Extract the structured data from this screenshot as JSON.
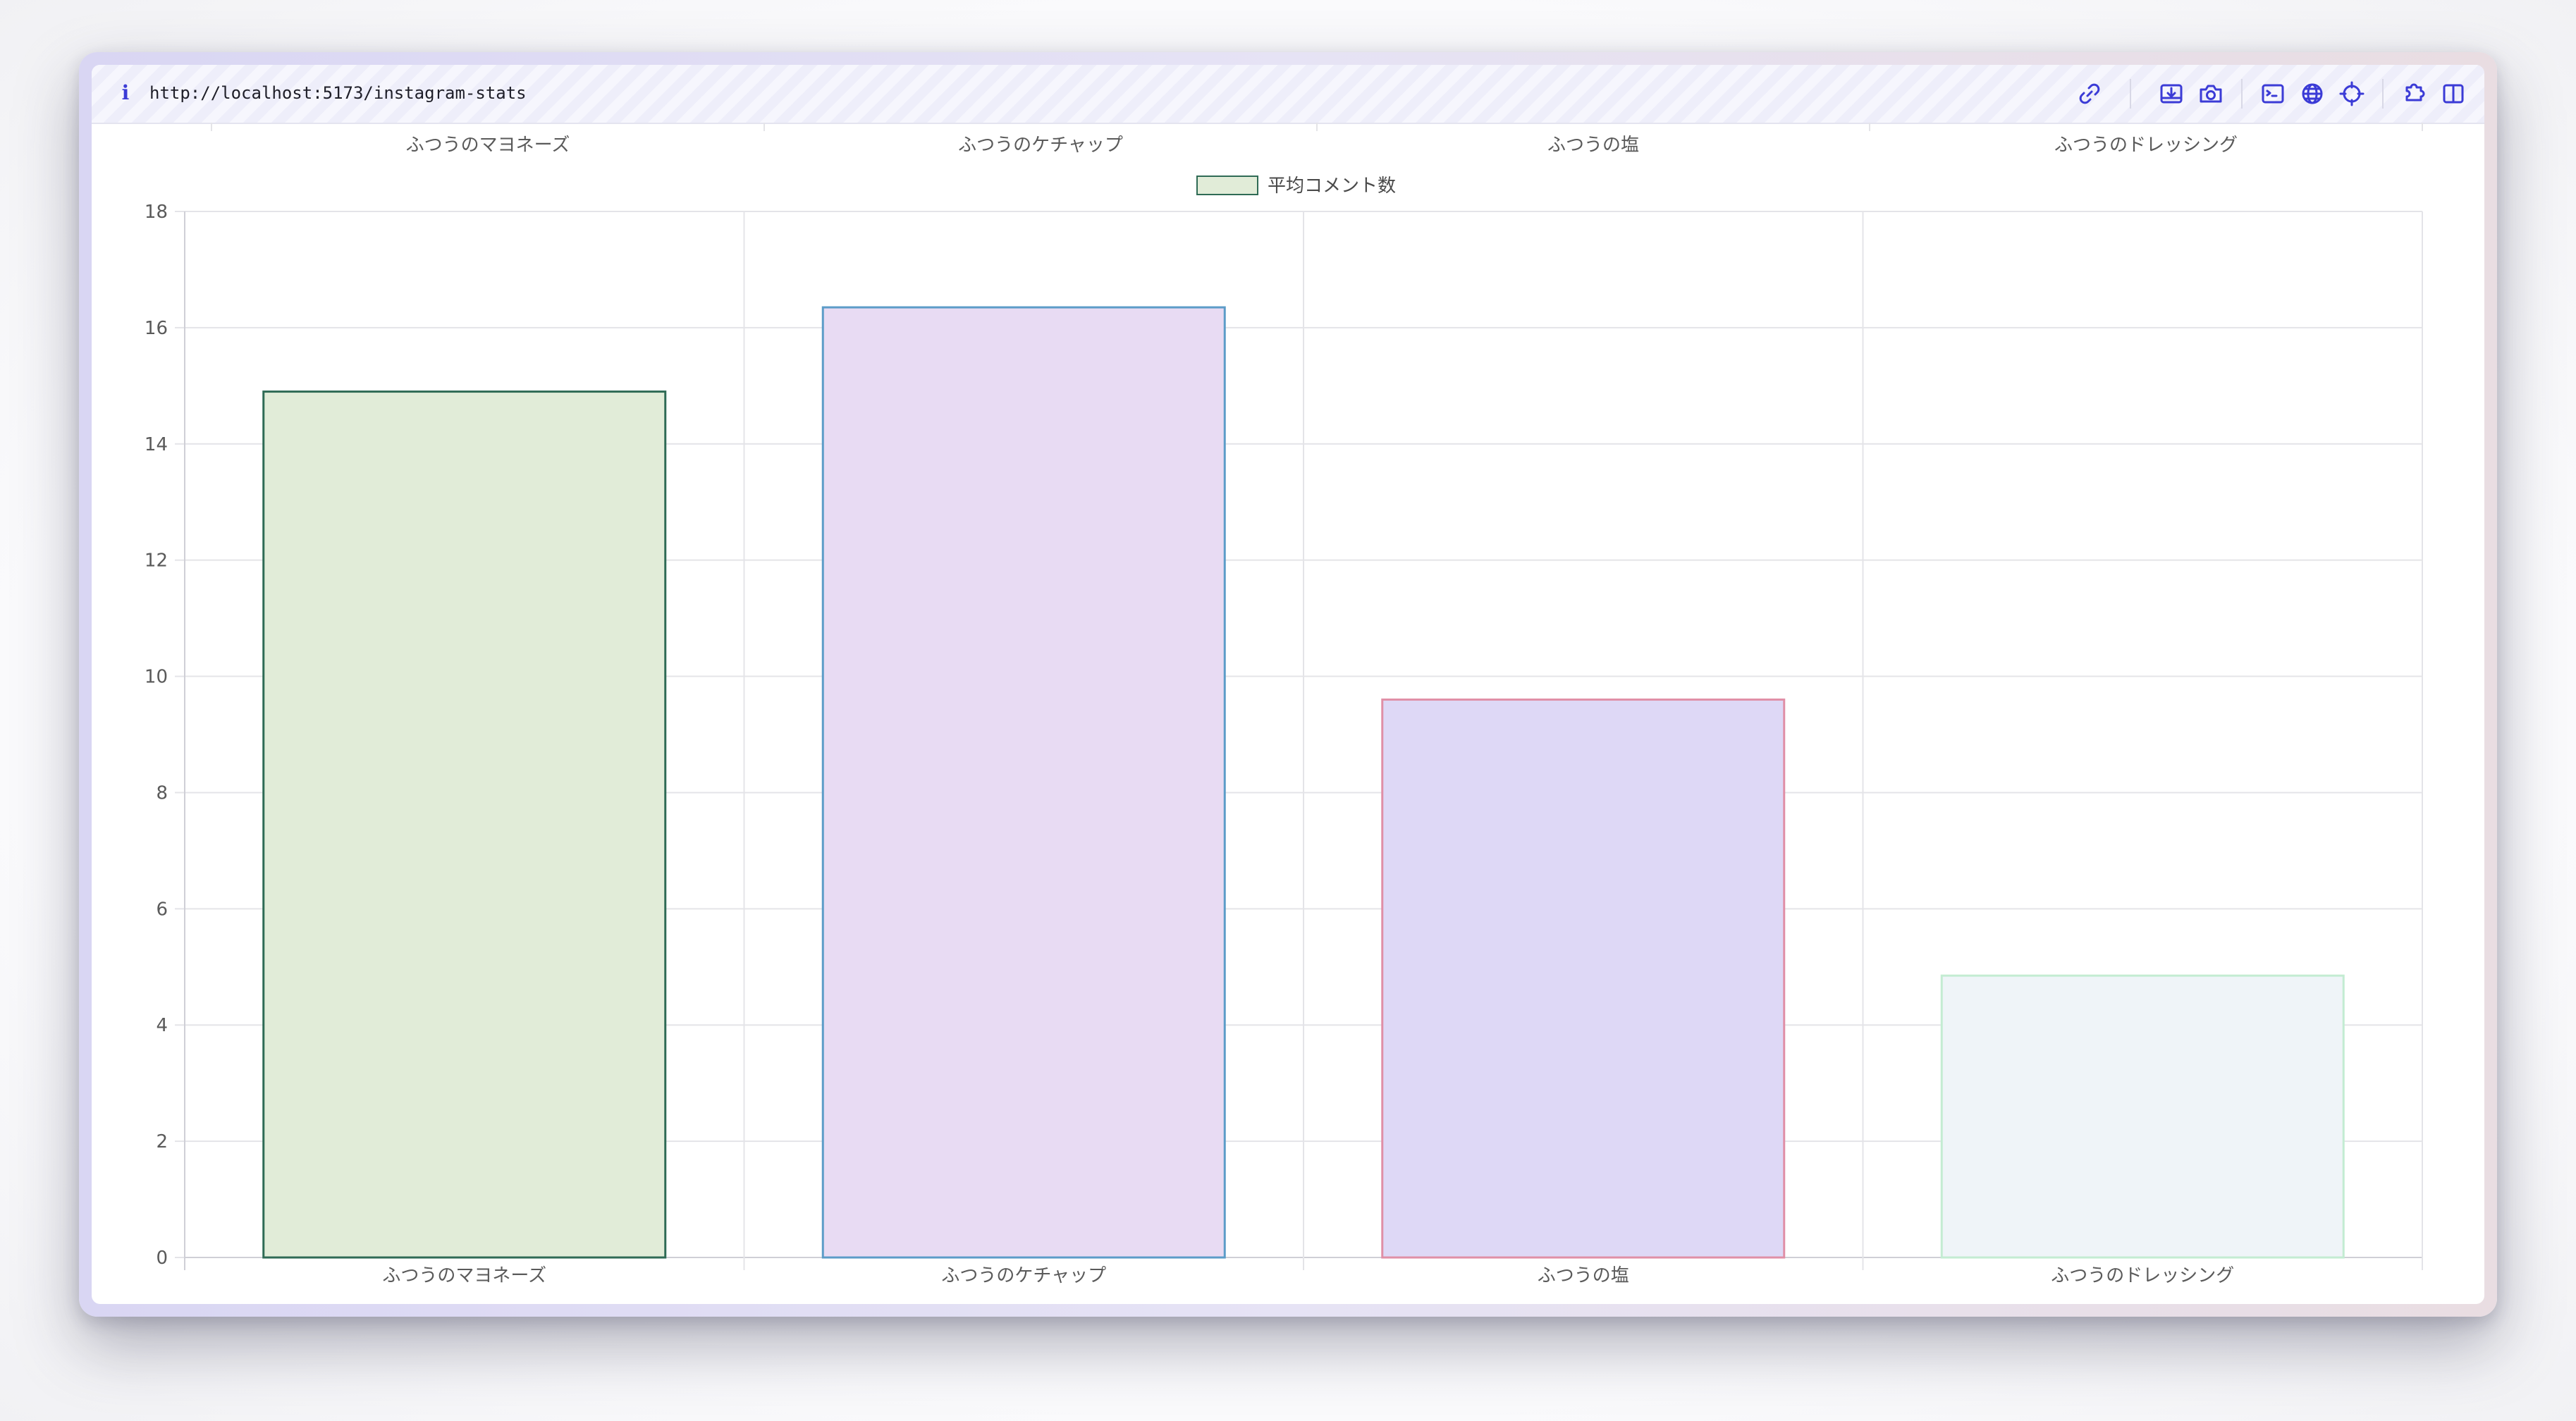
{
  "browser": {
    "url": "http://localhost:5173/instagram-stats",
    "info_icon_label": "i",
    "icons": [
      "link-icon",
      "download-icon",
      "camera-icon",
      "terminal-icon",
      "globe-icon",
      "crosshair-icon",
      "extension-icon",
      "sidebar-icon"
    ],
    "accent_color": "#3b3bd6"
  },
  "chart_data": {
    "type": "bar",
    "title": "",
    "xlabel": "",
    "ylabel": "",
    "categories": [
      "ふつうのマヨネーズ",
      "ふつうのケチャップ",
      "ふつうの塩",
      "ふつうのドレッシング"
    ],
    "top_categories": [
      "ふつうのマヨネーズ",
      "ふつうのケチャップ",
      "ふつうの塩",
      "ふつうのドレッシング"
    ],
    "series": [
      {
        "name": "平均コメント数",
        "values": [
          14.9,
          16.35,
          9.6,
          4.85
        ],
        "fill_colors": [
          "#e1ecd8",
          "#e8dbf3",
          "#ded8f6",
          "#eff4f8"
        ],
        "border_colors": [
          "#2f6b55",
          "#5c9cc8",
          "#e08fa7",
          "#c3ecd2"
        ]
      }
    ],
    "ylim": [
      0,
      18
    ],
    "yticks": [
      "0",
      "2",
      "4",
      "6",
      "8",
      "10",
      "12",
      "14",
      "16",
      "18"
    ],
    "grid": true,
    "legend_position": "top-center"
  }
}
